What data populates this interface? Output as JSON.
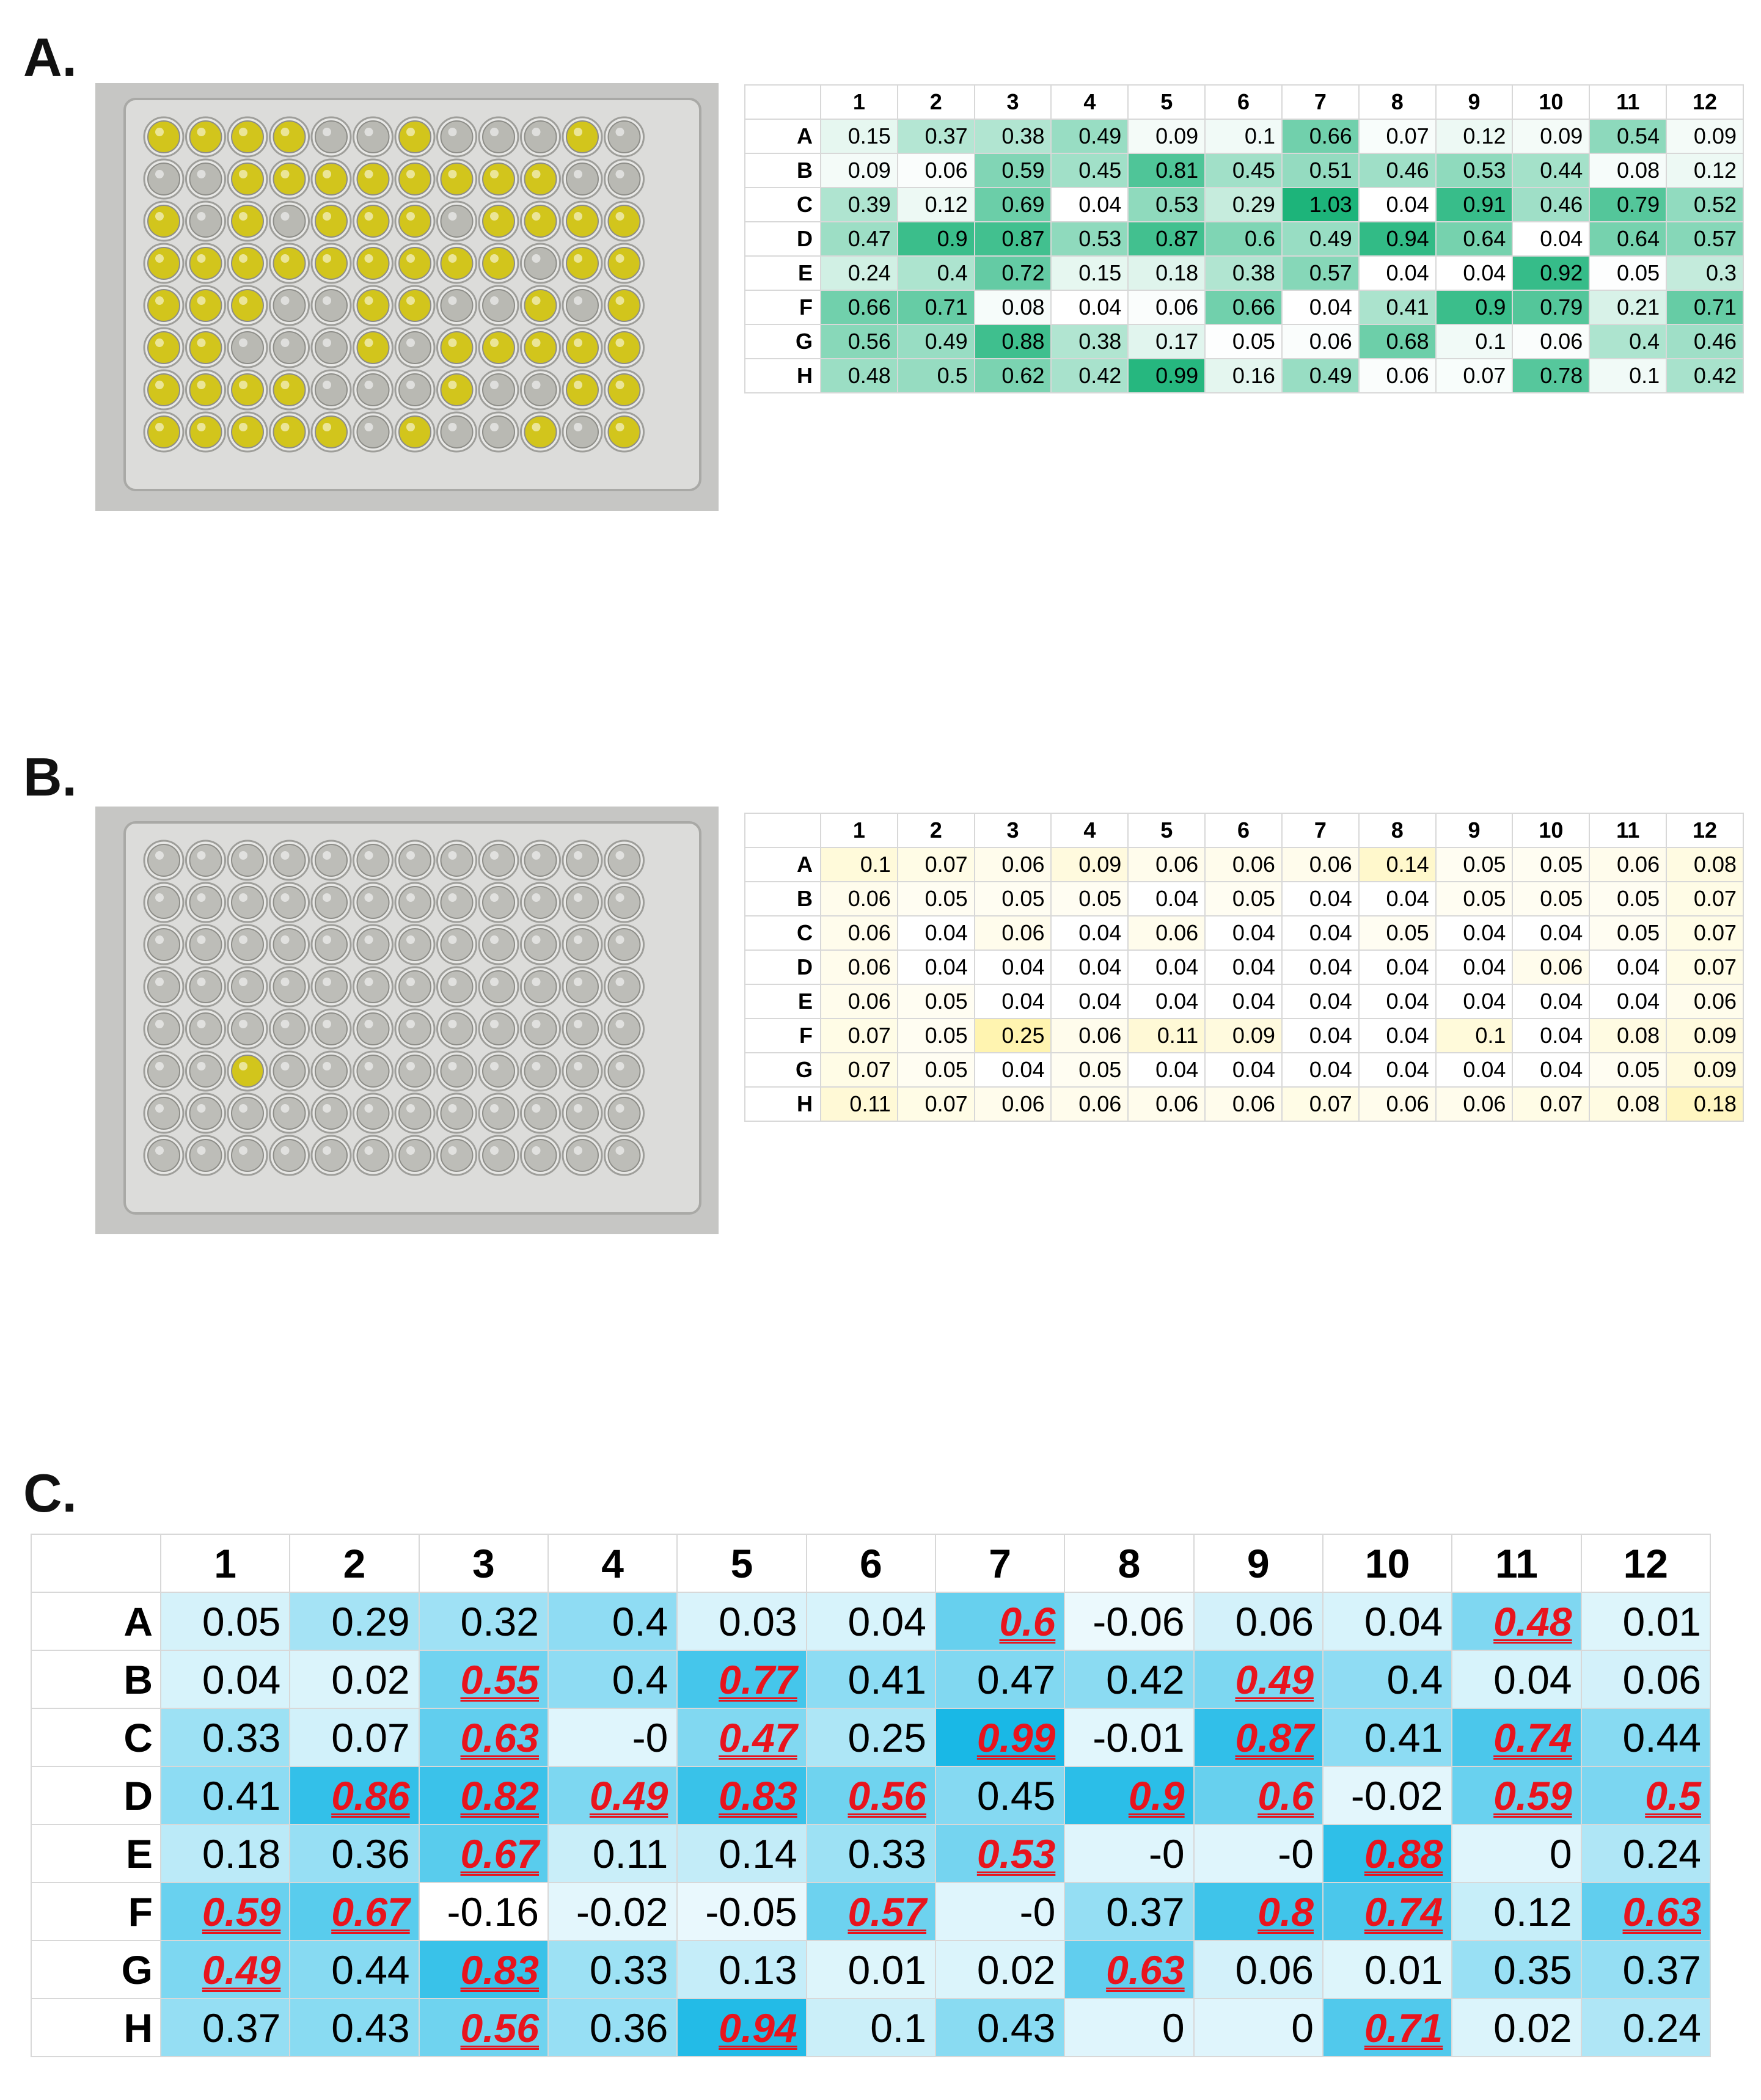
{
  "columns": [
    "1",
    "2",
    "3",
    "4",
    "5",
    "6",
    "7",
    "8",
    "9",
    "10",
    "11",
    "12"
  ],
  "rows": [
    "A",
    "B",
    "C",
    "D",
    "E",
    "F",
    "G",
    "H"
  ],
  "panel_a": {
    "label": "A.",
    "color_low": "#ffffff",
    "color_high": "#1db47a",
    "values": [
      [
        0.15,
        0.37,
        0.38,
        0.49,
        0.09,
        0.1,
        0.66,
        0.07,
        0.12,
        0.09,
        0.54,
        0.09
      ],
      [
        0.09,
        0.06,
        0.59,
        0.45,
        0.81,
        0.45,
        0.51,
        0.46,
        0.53,
        0.44,
        0.08,
        0.12
      ],
      [
        0.39,
        0.12,
        0.69,
        0.04,
        0.53,
        0.29,
        1.03,
        0.04,
        0.91,
        0.46,
        0.79,
        0.52
      ],
      [
        0.47,
        0.9,
        0.87,
        0.53,
        0.87,
        0.6,
        0.49,
        0.94,
        0.64,
        0.04,
        0.64,
        0.57
      ],
      [
        0.24,
        0.4,
        0.72,
        0.15,
        0.18,
        0.38,
        0.57,
        0.04,
        0.04,
        0.92,
        0.05,
        0.3
      ],
      [
        0.66,
        0.71,
        0.08,
        0.04,
        0.06,
        0.66,
        0.04,
        0.41,
        0.9,
        0.79,
        0.21,
        0.71
      ],
      [
        0.56,
        0.49,
        0.88,
        0.38,
        0.17,
        0.05,
        0.06,
        0.68,
        0.1,
        0.06,
        0.4,
        0.46
      ],
      [
        0.48,
        0.5,
        0.62,
        0.42,
        0.99,
        0.16,
        0.49,
        0.06,
        0.07,
        0.78,
        0.1,
        0.42
      ]
    ]
  },
  "panel_b": {
    "label": "B.",
    "color_low": "#ffffff",
    "color_high": "#fff4b0",
    "values": [
      [
        0.1,
        0.07,
        0.06,
        0.09,
        0.06,
        0.06,
        0.06,
        0.14,
        0.05,
        0.05,
        0.06,
        0.08
      ],
      [
        0.06,
        0.05,
        0.05,
        0.05,
        0.04,
        0.05,
        0.04,
        0.04,
        0.05,
        0.05,
        0.05,
        0.07
      ],
      [
        0.06,
        0.04,
        0.06,
        0.04,
        0.06,
        0.04,
        0.04,
        0.05,
        0.04,
        0.04,
        0.05,
        0.07
      ],
      [
        0.06,
        0.04,
        0.04,
        0.04,
        0.04,
        0.04,
        0.04,
        0.04,
        0.04,
        0.06,
        0.04,
        0.07
      ],
      [
        0.06,
        0.05,
        0.04,
        0.04,
        0.04,
        0.04,
        0.04,
        0.04,
        0.04,
        0.04,
        0.04,
        0.06
      ],
      [
        0.07,
        0.05,
        0.25,
        0.06,
        0.11,
        0.09,
        0.04,
        0.04,
        0.1,
        0.04,
        0.08,
        0.09
      ],
      [
        0.07,
        0.05,
        0.04,
        0.05,
        0.04,
        0.04,
        0.04,
        0.04,
        0.04,
        0.04,
        0.05,
        0.09
      ],
      [
        0.11,
        0.07,
        0.06,
        0.06,
        0.06,
        0.06,
        0.07,
        0.06,
        0.06,
        0.07,
        0.08,
        0.18
      ]
    ]
  },
  "panel_c": {
    "label": "C.",
    "color_low": "#ffffff",
    "color_high": "#19b8e6",
    "hit_color": "#e8141d",
    "values": [
      [
        "0.05",
        "0.29",
        "0.32",
        "0.4",
        "0.03",
        "0.04",
        "0.6",
        "-0.06",
        "0.06",
        "0.04",
        "0.48",
        "0.01"
      ],
      [
        "0.04",
        "0.02",
        "0.55",
        "0.4",
        "0.77",
        "0.41",
        "0.47",
        "0.42",
        "0.49",
        "0.4",
        "0.04",
        "0.06"
      ],
      [
        "0.33",
        "0.07",
        "0.63",
        "-0",
        "0.47",
        "0.25",
        "0.99",
        "-0.01",
        "0.87",
        "0.41",
        "0.74",
        "0.44"
      ],
      [
        "0.41",
        "0.86",
        "0.82",
        "0.49",
        "0.83",
        "0.56",
        "0.45",
        "0.9",
        "0.6",
        "-0.02",
        "0.59",
        "0.5"
      ],
      [
        "0.18",
        "0.36",
        "0.67",
        "0.11",
        "0.14",
        "0.33",
        "0.53",
        "-0",
        "-0",
        "0.88",
        "0",
        "0.24"
      ],
      [
        "0.59",
        "0.67",
        "-0.16",
        "-0.02",
        "-0.05",
        "0.57",
        "-0",
        "0.37",
        "0.8",
        "0.74",
        "0.12",
        "0.63"
      ],
      [
        "0.49",
        "0.44",
        "0.83",
        "0.33",
        "0.13",
        "0.01",
        "0.02",
        "0.63",
        "0.06",
        "0.01",
        "0.35",
        "0.37"
      ],
      [
        "0.37",
        "0.43",
        "0.56",
        "0.36",
        "0.94",
        "0.1",
        "0.43",
        "0",
        "0",
        "0.71",
        "0.02",
        "0.24"
      ]
    ],
    "highlighted": [
      [
        0,
        0,
        0,
        0,
        0,
        0,
        1,
        0,
        0,
        0,
        1,
        0
      ],
      [
        0,
        0,
        1,
        0,
        1,
        0,
        0,
        0,
        1,
        0,
        0,
        0
      ],
      [
        0,
        0,
        1,
        0,
        1,
        0,
        1,
        0,
        1,
        0,
        1,
        0
      ],
      [
        0,
        1,
        1,
        1,
        1,
        1,
        0,
        1,
        1,
        0,
        1,
        1
      ],
      [
        0,
        0,
        1,
        0,
        0,
        0,
        1,
        0,
        0,
        1,
        0,
        0
      ],
      [
        1,
        1,
        0,
        0,
        0,
        1,
        0,
        0,
        1,
        1,
        0,
        1
      ],
      [
        1,
        0,
        1,
        0,
        0,
        0,
        0,
        1,
        0,
        0,
        0,
        0
      ],
      [
        0,
        0,
        1,
        0,
        1,
        0,
        0,
        0,
        0,
        1,
        0,
        0
      ]
    ]
  },
  "plate_a": {
    "well_yellow": "#d2c51c",
    "well_clear": "#b9b9b3",
    "yellow_wells": [
      [
        1,
        1,
        1,
        1,
        0,
        0,
        1,
        0,
        0,
        0,
        1,
        0
      ],
      [
        0,
        0,
        1,
        1,
        1,
        1,
        1,
        1,
        1,
        1,
        0,
        0
      ],
      [
        1,
        0,
        1,
        0,
        1,
        1,
        1,
        0,
        1,
        1,
        1,
        1
      ],
      [
        1,
        1,
        1,
        1,
        1,
        1,
        1,
        1,
        1,
        0,
        1,
        1
      ],
      [
        1,
        1,
        1,
        0,
        0,
        1,
        1,
        0,
        0,
        1,
        0,
        1
      ],
      [
        1,
        1,
        0,
        0,
        0,
        1,
        0,
        1,
        1,
        1,
        1,
        1
      ],
      [
        1,
        1,
        1,
        1,
        0,
        0,
        0,
        1,
        0,
        0,
        1,
        1
      ],
      [
        1,
        1,
        1,
        1,
        1,
        0,
        1,
        0,
        0,
        1,
        0,
        1
      ]
    ]
  },
  "plate_b": {
    "well_yellow": "#d2c51c",
    "well_clear": "#bdbdb8",
    "yellow_wells": [
      [
        0,
        0,
        0,
        0,
        0,
        0,
        0,
        0,
        0,
        0,
        0,
        0
      ],
      [
        0,
        0,
        0,
        0,
        0,
        0,
        0,
        0,
        0,
        0,
        0,
        0
      ],
      [
        0,
        0,
        0,
        0,
        0,
        0,
        0,
        0,
        0,
        0,
        0,
        0
      ],
      [
        0,
        0,
        0,
        0,
        0,
        0,
        0,
        0,
        0,
        0,
        0,
        0
      ],
      [
        0,
        0,
        0,
        0,
        0,
        0,
        0,
        0,
        0,
        0,
        0,
        0
      ],
      [
        0,
        0,
        1,
        0,
        0,
        0,
        0,
        0,
        0,
        0,
        0,
        0
      ],
      [
        0,
        0,
        0,
        0,
        0,
        0,
        0,
        0,
        0,
        0,
        0,
        0
      ],
      [
        0,
        0,
        0,
        0,
        0,
        0,
        0,
        0,
        0,
        0,
        0,
        0
      ]
    ]
  }
}
